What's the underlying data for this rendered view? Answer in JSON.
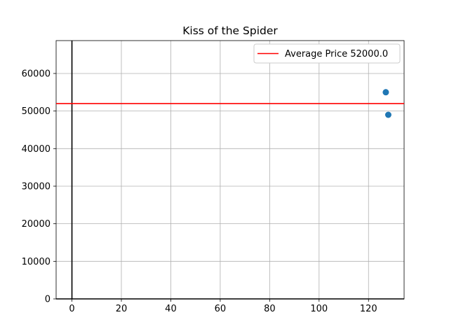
{
  "chart_data": {
    "type": "scatter",
    "title": "Kiss of the Spider",
    "xlabel": "",
    "ylabel": "",
    "xlim": [
      -6.4,
      134.4
    ],
    "ylim": [
      0,
      68750
    ],
    "x_ticks": [
      0,
      20,
      40,
      60,
      80,
      100,
      120
    ],
    "y_ticks": [
      0,
      10000,
      20000,
      30000,
      40000,
      50000,
      60000
    ],
    "grid": true,
    "legend_position": "top-right",
    "points": [
      {
        "x": 127,
        "y": 55000
      },
      {
        "x": 128,
        "y": 49000
      }
    ],
    "average_line": {
      "label": "Average Price 52000.0",
      "y": 52000,
      "color": "#ff0000"
    },
    "point_color": "#1f77b4",
    "reference_lines": {
      "x": 0,
      "y": 0,
      "color": "#000000"
    }
  }
}
